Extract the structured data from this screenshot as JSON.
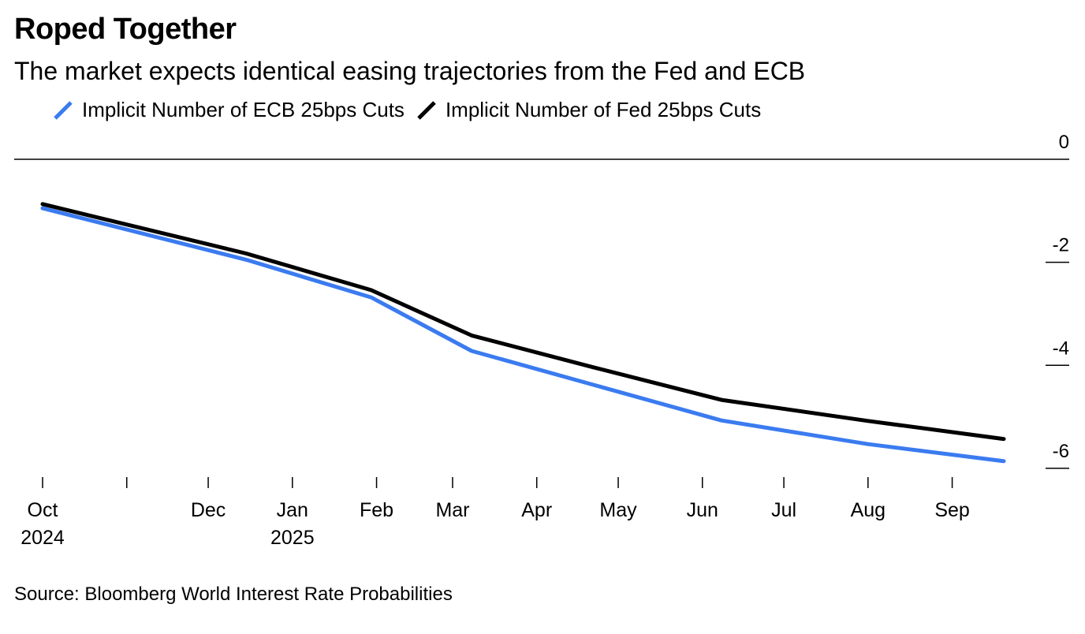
{
  "title": "Roped Together",
  "subtitle": "The market expects identical easing trajectories from the Fed and ECB",
  "source": "Source: Bloomberg World Interest Rate Probabilities",
  "legend": [
    {
      "name": "Implicit Number of ECB 25bps Cuts",
      "color": "#3b7bf0"
    },
    {
      "name": "Implicit Number of Fed 25bps Cuts",
      "color": "#000000"
    }
  ],
  "chart_data": {
    "type": "line",
    "title": "Roped Together",
    "subtitle": "The market expects identical easing trajectories from the Fed and ECB",
    "xlabel": "",
    "ylabel": "",
    "ylim": [
      -6.2,
      0
    ],
    "yticks": [
      0,
      -2,
      -4,
      -6
    ],
    "ytick_labels": [
      "0",
      "-2",
      "-4",
      "-6"
    ],
    "y_axis_side": "right",
    "xticks": [
      {
        "date": "2024-10-01",
        "label": "Oct",
        "sublabel": "2024"
      },
      {
        "date": "2024-11-01",
        "label": "",
        "sublabel": ""
      },
      {
        "date": "2024-12-01",
        "label": "Dec",
        "sublabel": ""
      },
      {
        "date": "2025-01-01",
        "label": "Jan",
        "sublabel": "2025"
      },
      {
        "date": "2025-02-01",
        "label": "Feb",
        "sublabel": ""
      },
      {
        "date": "2025-03-01",
        "label": "Mar",
        "sublabel": ""
      },
      {
        "date": "2025-04-01",
        "label": "Apr",
        "sublabel": ""
      },
      {
        "date": "2025-05-01",
        "label": "May",
        "sublabel": ""
      },
      {
        "date": "2025-06-01",
        "label": "Jun",
        "sublabel": ""
      },
      {
        "date": "2025-07-01",
        "label": "Jul",
        "sublabel": ""
      },
      {
        "date": "2025-08-01",
        "label": "Aug",
        "sublabel": ""
      },
      {
        "date": "2025-09-01",
        "label": "Sep",
        "sublabel": ""
      }
    ],
    "xlim": [
      "2024-10-01",
      "2025-09-20"
    ],
    "legend_position": "top-left",
    "grid": false,
    "series": [
      {
        "name": "Implicit Number of ECB 25bps Cuts",
        "color": "#3b7bf0",
        "points": [
          {
            "x": "2024-10-01",
            "y": -0.95
          },
          {
            "x": "2024-12-15",
            "y": -1.95
          },
          {
            "x": "2025-01-30",
            "y": -2.68
          },
          {
            "x": "2025-03-08",
            "y": -3.72
          },
          {
            "x": "2025-04-22",
            "y": -4.38
          },
          {
            "x": "2025-06-08",
            "y": -5.07
          },
          {
            "x": "2025-08-01",
            "y": -5.53
          },
          {
            "x": "2025-09-20",
            "y": -5.86
          }
        ]
      },
      {
        "name": "Implicit Number of Fed 25bps Cuts",
        "color": "#000000",
        "points": [
          {
            "x": "2024-10-01",
            "y": -0.87
          },
          {
            "x": "2024-12-15",
            "y": -1.83
          },
          {
            "x": "2025-01-30",
            "y": -2.54
          },
          {
            "x": "2025-03-08",
            "y": -3.42
          },
          {
            "x": "2025-04-22",
            "y": -4.04
          },
          {
            "x": "2025-06-08",
            "y": -4.67
          },
          {
            "x": "2025-08-01",
            "y": -5.08
          },
          {
            "x": "2025-09-20",
            "y": -5.43
          }
        ]
      }
    ]
  }
}
